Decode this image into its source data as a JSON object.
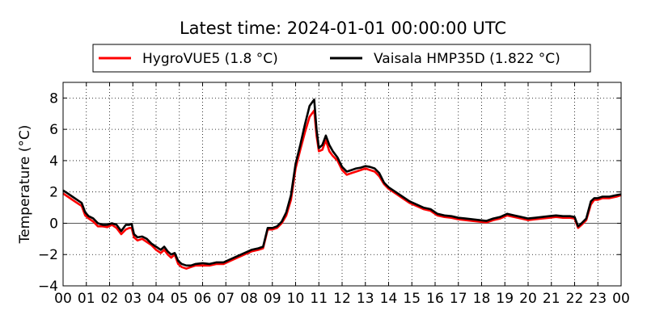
{
  "chart_data": {
    "type": "line",
    "title": "Latest time: 2024-01-01 00:00:00 UTC",
    "xlabel": "",
    "ylabel": "Temperature (°C)",
    "xlim": [
      0,
      24
    ],
    "ylim": [
      -4,
      9
    ],
    "x_ticks": [
      0,
      1,
      2,
      3,
      4,
      5,
      6,
      7,
      8,
      9,
      10,
      11,
      12,
      13,
      14,
      15,
      16,
      17,
      18,
      19,
      20,
      21,
      22,
      23,
      24
    ],
    "x_tick_labels": [
      "00",
      "01",
      "02",
      "03",
      "04",
      "05",
      "06",
      "07",
      "08",
      "09",
      "10",
      "11",
      "12",
      "13",
      "14",
      "15",
      "16",
      "17",
      "18",
      "19",
      "20",
      "21",
      "22",
      "23",
      "00"
    ],
    "y_ticks": [
      -4,
      -2,
      0,
      2,
      4,
      6,
      8
    ],
    "y_tick_labels": [
      "−4",
      "−2",
      "0",
      "2",
      "4",
      "6",
      "8"
    ],
    "grid": true,
    "zero_line": true,
    "legend_position": "top-center, above plot",
    "series": [
      {
        "name": "HygroVUE5 (1.8 °C)",
        "color": "#ff0000",
        "x": [
          0,
          0.2,
          0.4,
          0.6,
          0.8,
          0.95,
          1.1,
          1.3,
          1.5,
          1.7,
          1.9,
          2.1,
          2.3,
          2.5,
          2.7,
          2.85,
          2.95,
          3.05,
          3.2,
          3.4,
          3.6,
          3.8,
          4.0,
          4.2,
          4.35,
          4.5,
          4.65,
          4.8,
          4.95,
          5.1,
          5.3,
          5.5,
          5.7,
          6.0,
          6.3,
          6.6,
          6.9,
          7.2,
          7.5,
          7.8,
          8.1,
          8.4,
          8.6,
          8.8,
          9.0,
          9.2,
          9.4,
          9.6,
          9.8,
          10.0,
          10.2,
          10.4,
          10.6,
          10.8,
          10.9,
          11.0,
          11.15,
          11.3,
          11.45,
          11.6,
          11.8,
          12.0,
          12.2,
          12.4,
          12.6,
          12.8,
          13.0,
          13.2,
          13.4,
          13.6,
          13.8,
          14.0,
          14.3,
          14.6,
          14.9,
          15.2,
          15.5,
          15.8,
          16.1,
          16.4,
          16.7,
          17.0,
          17.3,
          17.6,
          17.9,
          18.2,
          18.5,
          18.8,
          19.1,
          19.4,
          19.7,
          20.0,
          20.3,
          20.6,
          20.9,
          21.2,
          21.5,
          21.8,
          22.0,
          22.15,
          22.3,
          22.5,
          22.7,
          22.85,
          23.0,
          23.2,
          23.5,
          23.8,
          24.0
        ],
        "y": [
          1.9,
          1.7,
          1.5,
          1.3,
          1.1,
          0.5,
          0.3,
          0.1,
          -0.2,
          -0.2,
          -0.25,
          -0.1,
          -0.3,
          -0.7,
          -0.4,
          -0.3,
          -0.3,
          -0.9,
          -1.1,
          -1.0,
          -1.2,
          -1.4,
          -1.7,
          -1.9,
          -1.7,
          -2.0,
          -2.2,
          -2.0,
          -2.6,
          -2.8,
          -2.9,
          -2.8,
          -2.7,
          -2.7,
          -2.7,
          -2.6,
          -2.6,
          -2.4,
          -2.2,
          -2.0,
          -1.8,
          -1.7,
          -1.6,
          -0.4,
          -0.4,
          -0.3,
          0.0,
          0.5,
          1.5,
          3.5,
          4.7,
          5.8,
          6.8,
          7.2,
          5.6,
          4.6,
          4.7,
          5.3,
          4.6,
          4.3,
          4.0,
          3.4,
          3.1,
          3.2,
          3.3,
          3.4,
          3.5,
          3.4,
          3.3,
          3.0,
          2.5,
          2.2,
          1.9,
          1.6,
          1.3,
          1.1,
          0.9,
          0.8,
          0.5,
          0.4,
          0.35,
          0.25,
          0.2,
          0.15,
          0.1,
          0.05,
          0.2,
          0.3,
          0.5,
          0.4,
          0.3,
          0.2,
          0.25,
          0.3,
          0.35,
          0.4,
          0.35,
          0.35,
          0.3,
          -0.3,
          -0.1,
          0.2,
          1.2,
          1.5,
          1.5,
          1.6,
          1.6,
          1.7,
          1.8
        ]
      },
      {
        "name": "Vaisala HMP35D (1.822 °C)",
        "color": "#000000",
        "x": [
          0,
          0.2,
          0.4,
          0.6,
          0.8,
          0.95,
          1.1,
          1.3,
          1.5,
          1.7,
          1.9,
          2.1,
          2.3,
          2.5,
          2.7,
          2.85,
          2.95,
          3.05,
          3.2,
          3.4,
          3.6,
          3.8,
          4.0,
          4.2,
          4.35,
          4.5,
          4.65,
          4.8,
          4.95,
          5.1,
          5.3,
          5.5,
          5.7,
          6.0,
          6.3,
          6.6,
          6.9,
          7.2,
          7.5,
          7.8,
          8.1,
          8.4,
          8.6,
          8.8,
          9.0,
          9.2,
          9.4,
          9.6,
          9.8,
          10.0,
          10.2,
          10.4,
          10.6,
          10.8,
          10.9,
          11.0,
          11.15,
          11.3,
          11.45,
          11.6,
          11.8,
          12.0,
          12.2,
          12.4,
          12.6,
          12.8,
          13.0,
          13.2,
          13.4,
          13.6,
          13.8,
          14.0,
          14.3,
          14.6,
          14.9,
          15.2,
          15.5,
          15.8,
          16.1,
          16.4,
          16.7,
          17.0,
          17.3,
          17.6,
          17.9,
          18.2,
          18.5,
          18.8,
          19.1,
          19.4,
          19.7,
          20.0,
          20.3,
          20.6,
          20.9,
          21.2,
          21.5,
          21.8,
          22.0,
          22.15,
          22.3,
          22.5,
          22.7,
          22.85,
          23.0,
          23.2,
          23.5,
          23.8,
          24.0
        ],
        "y": [
          2.1,
          1.9,
          1.7,
          1.5,
          1.3,
          0.7,
          0.45,
          0.3,
          0.0,
          -0.1,
          -0.1,
          0.0,
          -0.1,
          -0.5,
          -0.1,
          -0.1,
          -0.05,
          -0.7,
          -0.9,
          -0.85,
          -1.0,
          -1.3,
          -1.5,
          -1.7,
          -1.5,
          -1.8,
          -2.0,
          -1.9,
          -2.4,
          -2.6,
          -2.7,
          -2.7,
          -2.6,
          -2.55,
          -2.6,
          -2.5,
          -2.5,
          -2.3,
          -2.1,
          -1.9,
          -1.7,
          -1.6,
          -1.5,
          -0.3,
          -0.3,
          -0.2,
          0.1,
          0.7,
          1.8,
          3.8,
          5.0,
          6.3,
          7.5,
          7.9,
          6.0,
          4.8,
          5.0,
          5.6,
          5.0,
          4.6,
          4.2,
          3.6,
          3.3,
          3.4,
          3.5,
          3.55,
          3.65,
          3.6,
          3.5,
          3.2,
          2.6,
          2.3,
          2.0,
          1.7,
          1.4,
          1.2,
          1.0,
          0.9,
          0.6,
          0.5,
          0.45,
          0.35,
          0.3,
          0.25,
          0.2,
          0.15,
          0.3,
          0.4,
          0.6,
          0.5,
          0.4,
          0.3,
          0.35,
          0.4,
          0.45,
          0.5,
          0.45,
          0.45,
          0.4,
          -0.2,
          0.0,
          0.3,
          1.4,
          1.6,
          1.6,
          1.7,
          1.7,
          1.8,
          1.85
        ]
      }
    ]
  }
}
